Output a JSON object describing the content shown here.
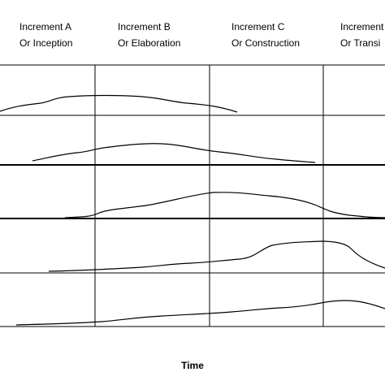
{
  "columns": [
    {
      "line1": "Increment A",
      "line2": "Or Inception"
    },
    {
      "line1": "Increment B",
      "line2": "Or Elaboration"
    },
    {
      "line1": "Increment C",
      "line2": "Or Construction"
    },
    {
      "line1": "Increment",
      "line2": "Or Transi"
    }
  ],
  "axis_label": "Time"
}
